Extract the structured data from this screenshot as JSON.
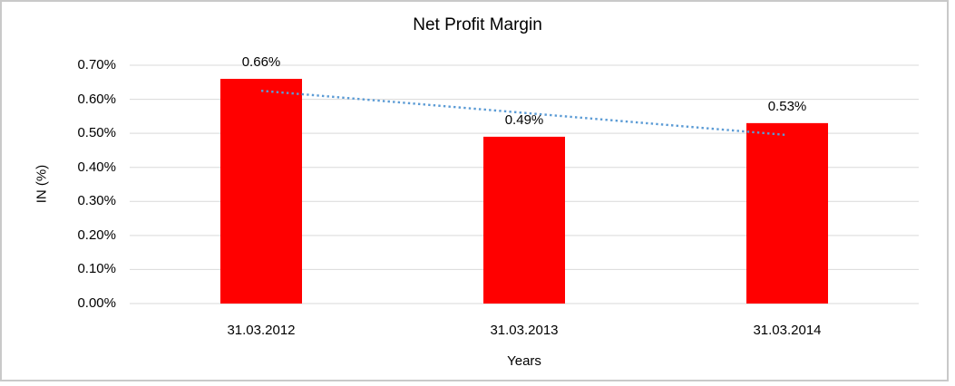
{
  "chart_data": {
    "type": "bar",
    "title": "Net Profit Margin",
    "xlabel": "Years",
    "ylabel": "IN (%)",
    "categories": [
      "31.03.2012",
      "31.03.2013",
      "31.03.2014"
    ],
    "values": [
      0.66,
      0.49,
      0.53
    ],
    "data_labels": [
      "0.66%",
      "0.49%",
      "0.53%"
    ],
    "unit": "%",
    "ylim": [
      0,
      0.7
    ],
    "yticks": [
      {
        "value": 0.0,
        "label": "0.00%"
      },
      {
        "value": 0.1,
        "label": "0.10%"
      },
      {
        "value": 0.2,
        "label": "0.20%"
      },
      {
        "value": 0.3,
        "label": "0.30%"
      },
      {
        "value": 0.4,
        "label": "0.40%"
      },
      {
        "value": 0.5,
        "label": "0.50%"
      },
      {
        "value": 0.6,
        "label": "0.60%"
      },
      {
        "value": 0.7,
        "label": "0.70%"
      }
    ],
    "grid": true,
    "legend": "none",
    "bar_color": "#ff0000",
    "gridline_color": "#d9d9d9",
    "text_color": "#000000",
    "trendline": {
      "type": "linear",
      "style": "dotted",
      "color": "#5b9bd5"
    }
  }
}
